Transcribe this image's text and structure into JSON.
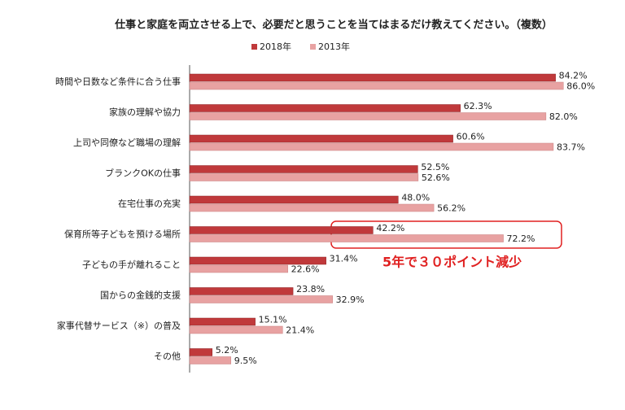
{
  "chart_data": {
    "type": "bar",
    "orientation": "horizontal",
    "title": "仕事と家庭を両立させる上で、必要だと思うことを当てはまるだけ教えてください。（複数）",
    "categories": [
      "時間や日数など条件に合う仕事",
      "家族の理解や協力",
      "上司や同僚など職場の理解",
      "ブランクOKの仕事",
      "在宅仕事の充実",
      "保育所等子どもを預ける場所",
      "子どもの手が離れること",
      "国からの金銭的支援",
      "家事代替サービス（※）の普及",
      "その他"
    ],
    "series": [
      {
        "name": "2018年",
        "color": "#c0393b",
        "values": [
          84.2,
          62.3,
          60.6,
          52.5,
          48.0,
          42.2,
          31.4,
          23.8,
          15.1,
          5.2
        ],
        "value_labels": [
          "84.2%",
          "62.3%",
          "60.6%",
          "52.5%",
          "48.0%",
          "42.2%",
          "31.4%",
          "23.8%",
          "15.1%",
          "5.2%"
        ]
      },
      {
        "name": "2013年",
        "color": "#e8a2a2",
        "values": [
          86.0,
          82.0,
          83.7,
          52.6,
          56.2,
          72.2,
          22.6,
          32.9,
          21.4,
          9.5
        ],
        "value_labels": [
          "86.0%",
          "82.0%",
          "83.7%",
          "52.6%",
          "56.2%",
          "72.2%",
          "22.6%",
          "32.9%",
          "21.4%",
          "9.5%"
        ]
      }
    ],
    "annotation": "5年で３０ポイント減少",
    "legend": "top"
  }
}
